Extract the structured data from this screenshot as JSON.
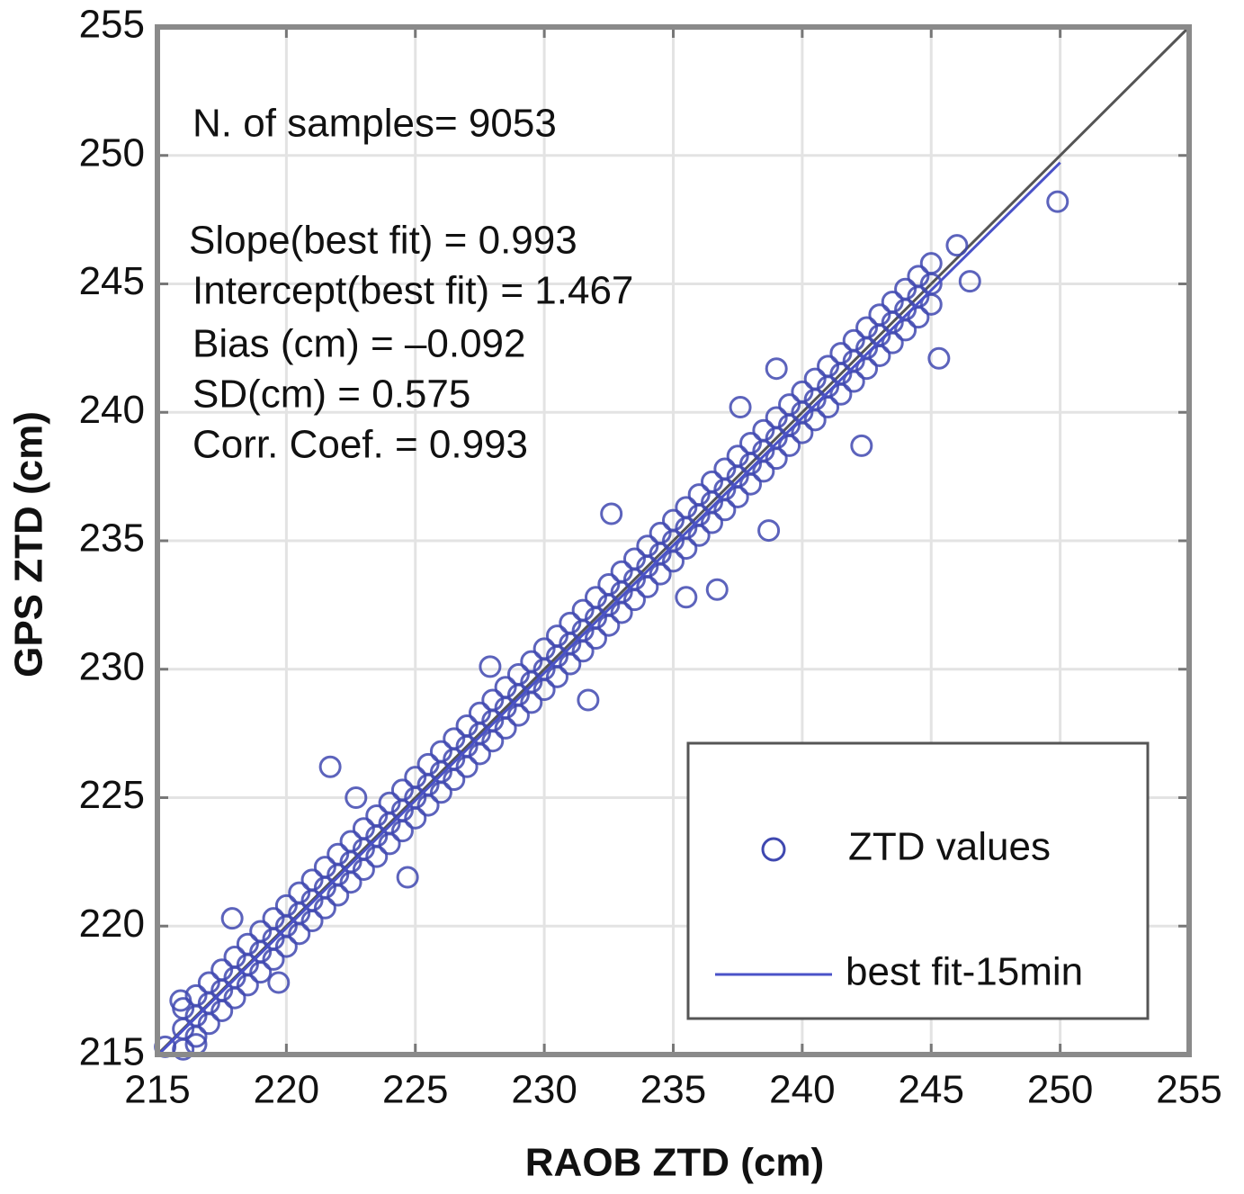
{
  "chart_data": {
    "type": "scatter",
    "x_label": "RAOB ZTD (cm)",
    "y_label": "GPS ZTD (cm)",
    "xlim": [
      215,
      255
    ],
    "ylim": [
      215,
      255
    ],
    "xticks": [
      215,
      220,
      225,
      230,
      235,
      240,
      245,
      250,
      255
    ],
    "yticks": [
      215,
      220,
      225,
      230,
      235,
      240,
      245,
      250,
      255
    ],
    "grid": true,
    "legend": "lower right",
    "annotations": [
      "N. of samples= 9053",
      "Slope(best fit) = 0.993",
      "Intercept(best fit) = 1.467",
      "Bias (cm) = –0.092",
      "SD(cm) = 0.575",
      "Corr. Coef. = 0.993"
    ],
    "identity_line": {
      "x": [
        215,
        255
      ],
      "values": [
        215,
        255
      ],
      "color": "#555555"
    },
    "series": [
      {
        "name": "ZTD values",
        "color": "#3f48b0",
        "marker": "circle",
        "x": [
          216,
          216,
          216,
          216.5,
          216.5,
          216.5,
          217,
          217,
          217,
          217.5,
          217.5,
          217.5,
          218,
          218,
          218,
          218.5,
          218.5,
          218.5,
          219,
          219,
          219,
          219.5,
          219.5,
          219.5,
          220,
          220,
          220,
          220.5,
          220.5,
          220.5,
          221,
          221,
          221,
          221.5,
          221.5,
          221.5,
          222,
          222,
          222,
          222.5,
          222.5,
          222.5,
          223,
          223,
          223,
          223.5,
          223.5,
          223.5,
          224,
          224,
          224,
          224.5,
          224.5,
          224.5,
          225,
          225,
          225,
          225.5,
          225.5,
          225.5,
          226,
          226,
          226,
          226.5,
          226.5,
          226.5,
          227,
          227,
          227,
          227.5,
          227.5,
          227.5,
          228,
          228,
          228,
          228.5,
          228.5,
          228.5,
          229,
          229,
          229,
          229.5,
          229.5,
          229.5,
          230,
          230,
          230,
          230.5,
          230.5,
          230.5,
          231,
          231,
          231,
          231.5,
          231.5,
          231.5,
          232,
          232,
          232,
          232.5,
          232.5,
          232.5,
          233,
          233,
          233,
          233.5,
          233.5,
          233.5,
          234,
          234,
          234,
          234.5,
          234.5,
          234.5,
          235,
          235,
          235,
          235.5,
          235.5,
          235.5,
          236,
          236,
          236,
          236.5,
          236.5,
          236.5,
          237,
          237,
          237,
          237.5,
          237.5,
          237.5,
          238,
          238,
          238,
          238.5,
          238.5,
          238.5,
          239,
          239,
          239,
          239.5,
          239.5,
          239.5,
          240,
          240,
          240,
          240.5,
          240.5,
          240.5,
          241,
          241,
          241,
          241.5,
          241.5,
          241.5,
          242,
          242,
          242,
          242.5,
          242.5,
          242.5,
          243,
          243,
          243,
          243.5,
          243.5,
          243.5,
          244,
          244,
          244,
          244.5,
          244.5,
          244.5,
          245,
          245,
          245,
          249.9,
          246,
          246.5,
          245.3,
          242.3,
          238.7,
          236.7,
          235.5,
          237.6,
          239,
          232.6,
          231.7,
          227.9,
          221.7,
          222.7,
          224.7,
          217.9,
          219.7,
          216.5,
          215.3,
          215.9
        ],
        "values": [
          215.2,
          216,
          216.8,
          215.7,
          216.5,
          217.3,
          216.2,
          217,
          217.8,
          216.7,
          217.5,
          218.3,
          217.2,
          218,
          218.8,
          217.7,
          218.5,
          219.3,
          218.2,
          219,
          219.8,
          218.7,
          219.5,
          220.3,
          219.2,
          220,
          220.8,
          219.7,
          220.5,
          221.3,
          220.2,
          221,
          221.8,
          220.7,
          221.5,
          222.3,
          221.2,
          222,
          222.8,
          221.7,
          222.5,
          223.3,
          222.2,
          223,
          223.8,
          222.7,
          223.5,
          224.3,
          223.2,
          224,
          224.8,
          223.7,
          224.5,
          225.3,
          224.2,
          225,
          225.8,
          224.7,
          225.5,
          226.3,
          225.2,
          226,
          226.8,
          225.7,
          226.5,
          227.3,
          226.2,
          227,
          227.8,
          226.7,
          227.5,
          228.3,
          227.2,
          228,
          228.8,
          227.7,
          228.5,
          229.3,
          228.2,
          229,
          229.8,
          228.7,
          229.5,
          230.3,
          229.2,
          230,
          230.8,
          229.7,
          230.5,
          231.3,
          230.2,
          231,
          231.8,
          230.7,
          231.5,
          232.3,
          231.2,
          232,
          232.8,
          231.7,
          232.5,
          233.3,
          232.2,
          233,
          233.8,
          232.7,
          233.5,
          234.3,
          233.2,
          234,
          234.8,
          233.7,
          234.5,
          235.3,
          234.2,
          235,
          235.8,
          234.7,
          235.5,
          236.3,
          235.2,
          236,
          236.8,
          235.7,
          236.5,
          237.3,
          236.2,
          237,
          237.8,
          236.7,
          237.5,
          238.3,
          237.2,
          238,
          238.8,
          237.7,
          238.5,
          239.3,
          238.2,
          239,
          239.8,
          238.7,
          239.5,
          240.3,
          239.2,
          240,
          240.8,
          239.7,
          240.5,
          241.3,
          240.2,
          241,
          241.8,
          240.7,
          241.5,
          242.3,
          241.2,
          242,
          242.8,
          241.7,
          242.5,
          243.3,
          242.2,
          243,
          243.8,
          242.7,
          243.5,
          244.3,
          243.2,
          244,
          244.8,
          243.7,
          244.5,
          245.3,
          244.2,
          245,
          245.8,
          248.2,
          246.5,
          245.1,
          242.1,
          238.7,
          235.4,
          233.1,
          232.8,
          240.2,
          241.7,
          236.05,
          228.8,
          230.1,
          226.2,
          225,
          221.9,
          220.3,
          217.8,
          215.4,
          215.3,
          217.1
        ]
      },
      {
        "name": "best fit-15min",
        "color": "#4a52c8",
        "marker": "line",
        "x": [
          215,
          250
        ],
        "values": [
          214.96,
          249.72
        ]
      }
    ]
  }
}
